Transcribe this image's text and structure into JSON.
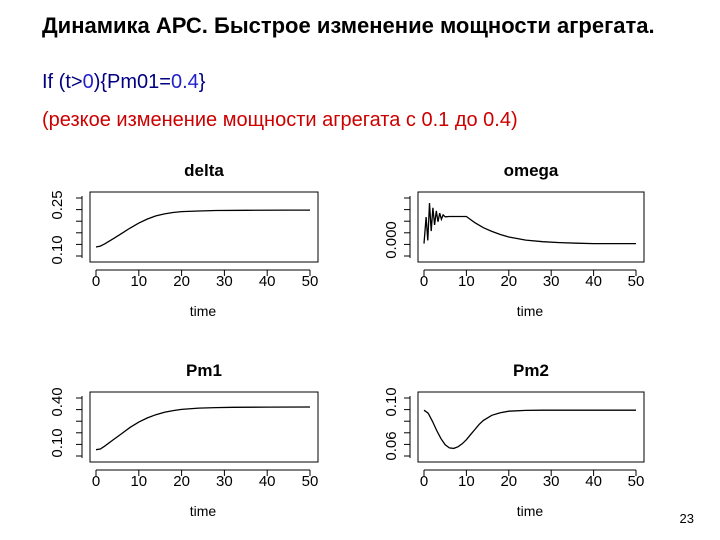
{
  "slide": {
    "title": "Динамика АРС. Быстрое изменение мощности агрегата.",
    "code": {
      "part1": "If (t>",
      "part2": "0",
      "part3": "){Pm01=",
      "part4": "0.4",
      "part5": "}"
    },
    "subtitle": "(резкое изменение мощности агрегата с 0.1 до 0.4)",
    "page_number": "23"
  },
  "chart_data": [
    {
      "type": "line",
      "title": "delta",
      "xlabel": "time",
      "ylabel": "",
      "xlim": [
        0,
        50
      ],
      "ylim": [
        0.05,
        0.3
      ],
      "xticks": [
        "0",
        "10",
        "20",
        "30",
        "40",
        "50"
      ],
      "yticks": [
        "0.10",
        "0.25"
      ],
      "series": [
        {
          "x": [
            0,
            1,
            2,
            4,
            6,
            8,
            10,
            12,
            14,
            16,
            18,
            20,
            24,
            28,
            35,
            45,
            50
          ],
          "y": [
            0.09,
            0.094,
            0.104,
            0.127,
            0.151,
            0.175,
            0.197,
            0.215,
            0.229,
            0.238,
            0.244,
            0.248,
            0.251,
            0.253,
            0.254,
            0.255,
            0.255
          ]
        }
      ]
    },
    {
      "type": "line",
      "title": "omega",
      "xlabel": "time",
      "ylabel": "",
      "xlim": [
        0,
        50
      ],
      "ylim": [
        -0.0004,
        0.0014
      ],
      "xticks": [
        "0",
        "10",
        "20",
        "30",
        "40",
        "50"
      ],
      "yticks": [
        "0.000"
      ],
      "series": [
        {
          "x": [
            0,
            0.5,
            0.9,
            1.3,
            1.7,
            2.1,
            2.5,
            2.9,
            3.3,
            3.7,
            4.1,
            4.5,
            5,
            6,
            7,
            8,
            9,
            10,
            11,
            12,
            14,
            16,
            18,
            20,
            24,
            28,
            32,
            36,
            40,
            45,
            50
          ],
          "y": [
            0,
            0.00085,
            0.0001,
            0.0013,
            0.0004,
            0.00115,
            0.0006,
            0.00105,
            0.0007,
            0.00098,
            0.00078,
            0.00092,
            0.00086,
            0.00087,
            0.00087,
            0.00087,
            0.00087,
            0.00087,
            0.00077,
            0.00067,
            0.00051,
            0.00039,
            0.00029,
            0.00021,
            0.00011,
            6e-05,
            3e-05,
            1e-05,
            0.0,
            0.0,
            0.0
          ]
        }
      ]
    },
    {
      "type": "line",
      "title": "Pm1",
      "xlabel": "time",
      "ylabel": "",
      "xlim": [
        0,
        50
      ],
      "ylim": [
        0.05,
        0.45
      ],
      "xticks": [
        "0",
        "10",
        "20",
        "30",
        "40",
        "50"
      ],
      "yticks": [
        "0.10",
        "0.40"
      ],
      "series": [
        {
          "x": [
            0,
            1,
            2,
            4,
            6,
            8,
            10,
            12,
            14,
            16,
            18,
            20,
            24,
            28,
            32,
            40,
            50
          ],
          "y": [
            0.095,
            0.1,
            0.12,
            0.165,
            0.21,
            0.255,
            0.292,
            0.322,
            0.345,
            0.362,
            0.374,
            0.383,
            0.392,
            0.396,
            0.398,
            0.399,
            0.4
          ]
        }
      ]
    },
    {
      "type": "line",
      "title": "Pm2",
      "xlabel": "time",
      "ylabel": "",
      "xlim": [
        0,
        50
      ],
      "ylim": [
        0.055,
        0.11
      ],
      "xticks": [
        "0",
        "10",
        "20",
        "30",
        "40",
        "50"
      ],
      "yticks": [
        "0.06",
        "0.10"
      ],
      "series": [
        {
          "x": [
            0,
            1,
            2,
            3,
            4,
            5,
            6,
            7,
            8,
            9,
            10,
            11,
            12,
            13,
            14,
            16,
            18,
            20,
            24,
            28,
            35,
            50
          ],
          "y": [
            0.1,
            0.097,
            0.089,
            0.08,
            0.072,
            0.066,
            0.063,
            0.0625,
            0.064,
            0.067,
            0.071,
            0.076,
            0.081,
            0.086,
            0.09,
            0.095,
            0.0975,
            0.099,
            0.0998,
            0.1,
            0.1,
            0.1
          ]
        }
      ]
    }
  ]
}
